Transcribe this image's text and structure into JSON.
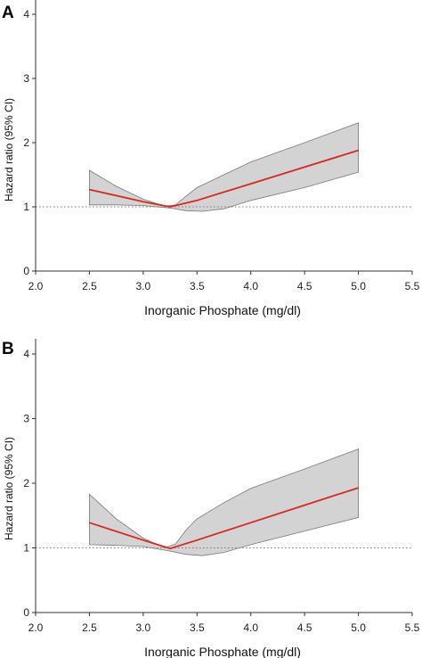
{
  "colors": {
    "estimate_line": "#d42a1e",
    "ci_band_fill": "#d3d3d3",
    "ci_band_edge": "#7a7a7a",
    "reference_line": "#7a7a7a",
    "axis": "#333333"
  },
  "chart_data": [
    {
      "type": "line",
      "panel_label": "A",
      "xlabel": "Inorganic Phosphate (mg/dl)",
      "ylabel": "Hazard ratio (95% CI)",
      "xlim": [
        2.0,
        5.5
      ],
      "ylim": [
        0,
        4.2
      ],
      "x_ticks": [
        2.0,
        2.5,
        3.0,
        3.5,
        4.0,
        4.5,
        5.0,
        5.5
      ],
      "x_tick_labels": [
        "2.0",
        "2.5",
        "3.0",
        "3.5",
        "4.0",
        "4.5",
        "5.0",
        "5.5"
      ],
      "y_ticks": [
        0,
        1,
        2,
        3,
        4
      ],
      "y_tick_labels": [
        "0",
        "1",
        "2",
        "3",
        "4"
      ],
      "reference_line_y": 1,
      "grid": false,
      "series": [
        {
          "role": "estimate",
          "x": [
            2.5,
            3.0,
            3.25,
            3.5,
            4.0,
            4.5,
            5.0
          ],
          "y": [
            1.27,
            1.08,
            1.0,
            1.1,
            1.36,
            1.62,
            1.88
          ]
        },
        {
          "role": "ci_upper",
          "x": [
            2.5,
            2.75,
            3.0,
            3.2,
            3.3,
            3.4,
            3.5,
            3.75,
            4.0,
            4.5,
            5.0
          ],
          "y": [
            1.57,
            1.32,
            1.12,
            1.01,
            1.03,
            1.17,
            1.3,
            1.5,
            1.7,
            2.0,
            2.31
          ]
        },
        {
          "role": "ci_lower",
          "x": [
            2.5,
            2.75,
            3.0,
            3.25,
            3.4,
            3.55,
            3.75,
            4.0,
            4.5,
            5.0
          ],
          "y": [
            1.03,
            1.03,
            1.02,
            0.98,
            0.94,
            0.93,
            0.97,
            1.1,
            1.3,
            1.54
          ]
        }
      ]
    },
    {
      "type": "line",
      "panel_label": "B",
      "xlabel": "Inorganic Phosphate (mg/dl)",
      "ylabel": "Hazard ratio (95% CI)",
      "xlim": [
        2.0,
        5.5
      ],
      "ylim": [
        0,
        4.2
      ],
      "x_ticks": [
        2.0,
        2.5,
        3.0,
        3.5,
        4.0,
        4.5,
        5.0,
        5.5
      ],
      "x_tick_labels": [
        "2.0",
        "2.5",
        "3.0",
        "3.5",
        "4.0",
        "4.5",
        "5.0",
        "5.5"
      ],
      "y_ticks": [
        0,
        1,
        2,
        3,
        4
      ],
      "y_tick_labels": [
        "0",
        "1",
        "2",
        "3",
        "4"
      ],
      "reference_line_y": 1,
      "grid": false,
      "series": [
        {
          "role": "estimate",
          "x": [
            2.5,
            3.0,
            3.25,
            3.5,
            4.0,
            4.5,
            5.0
          ],
          "y": [
            1.39,
            1.12,
            0.99,
            1.12,
            1.39,
            1.66,
            1.93
          ]
        },
        {
          "role": "ci_upper",
          "x": [
            2.5,
            2.75,
            3.0,
            3.2,
            3.3,
            3.4,
            3.5,
            3.75,
            4.0,
            4.5,
            5.0
          ],
          "y": [
            1.83,
            1.45,
            1.15,
            1.0,
            1.06,
            1.28,
            1.45,
            1.7,
            1.92,
            2.22,
            2.53
          ]
        },
        {
          "role": "ci_lower",
          "x": [
            2.5,
            2.75,
            3.0,
            3.25,
            3.4,
            3.55,
            3.75,
            4.0,
            4.5,
            5.0
          ],
          "y": [
            1.05,
            1.04,
            1.02,
            0.95,
            0.9,
            0.88,
            0.93,
            1.05,
            1.26,
            1.47
          ]
        }
      ]
    }
  ]
}
